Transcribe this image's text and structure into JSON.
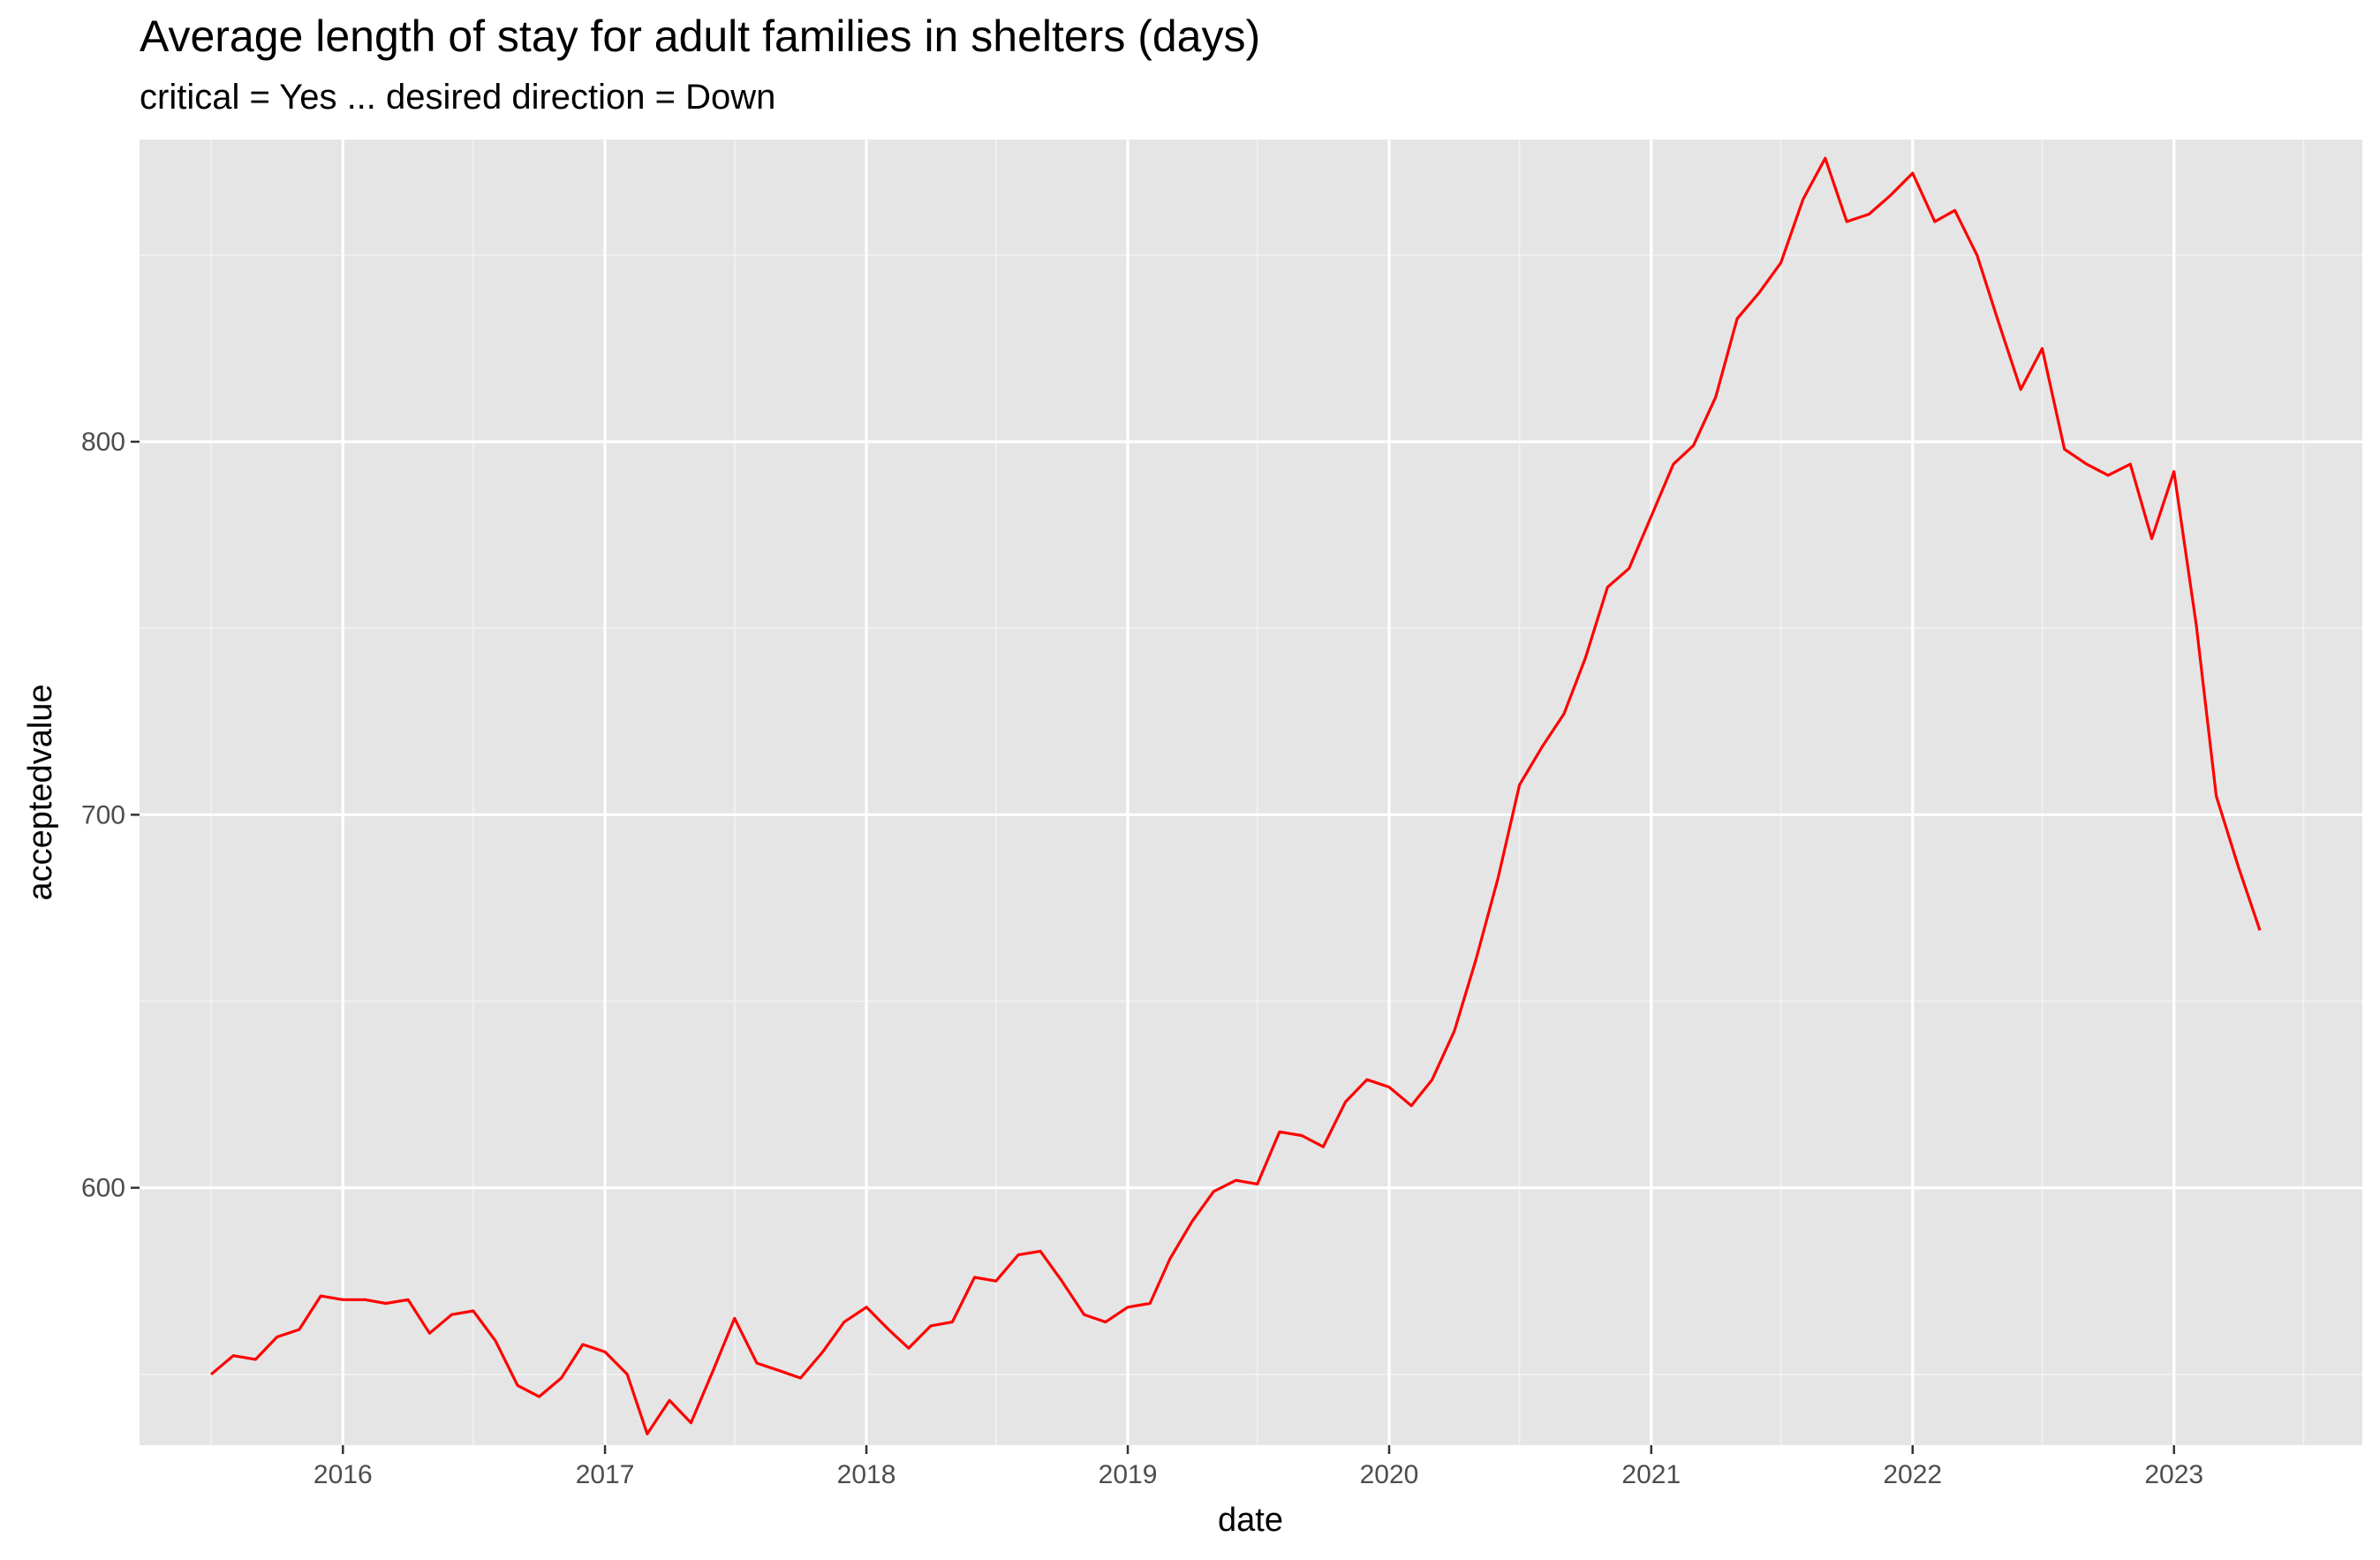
{
  "chart_data": {
    "type": "line",
    "title": "Average length of stay for adult families in shelters (days)",
    "subtitle": "critical = Yes ... desired direction = Down",
    "xlabel": "date",
    "ylabel": "acceptedvalue",
    "x_ticks": [
      "2016",
      "2017",
      "2018",
      "2019",
      "2020",
      "2021",
      "2022",
      "2023"
    ],
    "y_ticks": [
      600,
      700,
      800
    ],
    "xlim": [
      "2015-03-23",
      "2023-09-21"
    ],
    "ylim": [
      531,
      881
    ],
    "grid": true,
    "line_color": "#ff0000",
    "panel_background": "#e5e5e5",
    "series": [
      {
        "x": [
          "2015-07",
          "2015-08",
          "2015-09",
          "2015-10",
          "2015-11",
          "2015-12",
          "2016-01",
          "2016-02",
          "2016-03",
          "2016-04",
          "2016-05",
          "2016-06",
          "2016-07",
          "2016-08",
          "2016-09",
          "2016-10",
          "2016-11",
          "2016-12",
          "2017-01",
          "2017-02",
          "2017-03",
          "2017-04",
          "2017-05",
          "2017-06",
          "2017-07",
          "2017-08",
          "2017-09",
          "2017-10",
          "2017-11",
          "2017-12",
          "2018-01",
          "2018-02",
          "2018-03",
          "2018-04",
          "2018-05",
          "2018-06",
          "2018-07",
          "2018-08",
          "2018-09",
          "2018-10",
          "2018-11",
          "2018-12",
          "2019-01",
          "2019-02",
          "2019-03",
          "2019-04",
          "2019-05",
          "2019-06",
          "2019-07",
          "2019-08",
          "2019-09",
          "2019-10",
          "2019-11",
          "2019-12",
          "2020-01",
          "2020-02",
          "2020-03",
          "2020-04",
          "2020-05",
          "2020-06",
          "2020-07",
          "2020-08",
          "2020-09",
          "2020-10",
          "2020-11",
          "2020-12",
          "2021-01",
          "2021-02",
          "2021-03",
          "2021-04",
          "2021-05",
          "2021-06",
          "2021-07",
          "2021-08",
          "2021-09",
          "2021-10",
          "2021-11",
          "2021-12",
          "2022-01",
          "2022-02",
          "2022-03",
          "2022-04",
          "2022-05",
          "2022-06",
          "2022-07",
          "2022-08",
          "2022-09",
          "2022-10",
          "2022-11",
          "2022-12",
          "2023-01",
          "2023-02",
          "2023-03",
          "2023-04",
          "2023-05"
        ],
        "values": [
          550,
          555,
          554,
          560,
          562,
          571,
          570,
          570,
          569,
          570,
          561,
          566,
          567,
          559,
          547,
          544,
          549,
          558,
          556,
          550,
          534,
          543,
          537,
          551,
          565,
          553,
          551,
          549,
          556,
          564,
          568,
          562,
          557,
          563,
          564,
          576,
          575,
          582,
          583,
          575,
          566,
          564,
          568,
          569,
          581,
          591,
          599,
          602,
          601,
          615,
          614,
          611,
          623,
          629,
          627,
          622,
          629,
          642,
          661,
          683,
          708,
          718,
          727,
          742,
          761,
          766,
          780,
          794,
          799,
          812,
          833,
          840,
          848,
          865,
          876,
          859,
          861,
          866,
          872,
          859,
          862,
          850,
          832,
          814,
          825,
          798,
          794,
          791,
          794,
          774,
          792,
          751,
          705,
          686,
          669
        ]
      }
    ]
  }
}
